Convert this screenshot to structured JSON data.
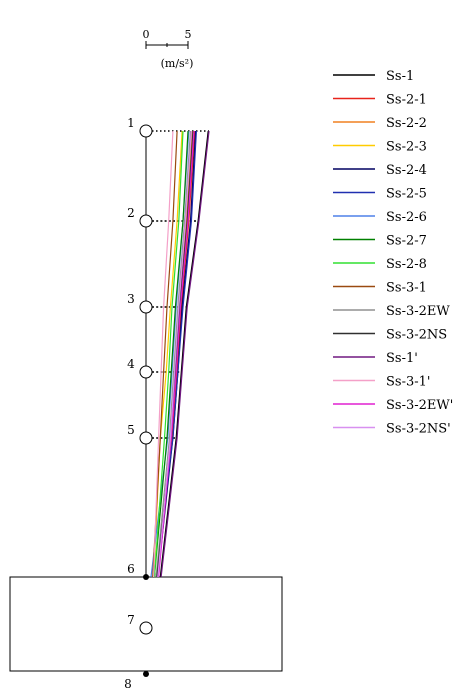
{
  "chart_data": {
    "type": "line",
    "title": "",
    "xlabel": "",
    "ylabel": "",
    "scale_bar": {
      "min_label": "0",
      "max_label": "5",
      "unit": "(m/s²)",
      "length": 5
    },
    "nodes": [
      {
        "id": "1",
        "mass": true
      },
      {
        "id": "2",
        "mass": true
      },
      {
        "id": "3",
        "mass": true
      },
      {
        "id": "4",
        "mass": true
      },
      {
        "id": "5",
        "mass": true
      },
      {
        "id": "6",
        "mass": false
      },
      {
        "id": "7",
        "mass": true
      },
      {
        "id": "8",
        "mass": false
      }
    ],
    "node_levels": [
      "1",
      "2",
      "3",
      "4",
      "5",
      "6"
    ],
    "xlim": [
      0,
      10
    ],
    "series": [
      {
        "name": "Ss-1",
        "color": "#000000",
        "values": [
          7.4,
          6.2,
          4.8,
          4.2,
          3.6,
          1.7
        ]
      },
      {
        "name": "Ss-2-1",
        "color": "#e8231b",
        "values": [
          5.8,
          5.1,
          4.2,
          3.7,
          3.1,
          1.4
        ]
      },
      {
        "name": "Ss-2-2",
        "color": "#f08020",
        "values": [
          5.5,
          4.8,
          3.9,
          3.5,
          3.0,
          1.3
        ]
      },
      {
        "name": "Ss-2-3",
        "color": "#ffcc00",
        "values": [
          4.3,
          3.7,
          2.9,
          2.4,
          1.7,
          0.9
        ]
      },
      {
        "name": "Ss-2-4",
        "color": "#000060",
        "values": [
          5.9,
          5.3,
          4.3,
          3.8,
          3.2,
          1.4
        ]
      },
      {
        "name": "Ss-2-5",
        "color": "#2030b0",
        "values": [
          6.0,
          5.4,
          4.4,
          3.8,
          3.2,
          1.2
        ]
      },
      {
        "name": "Ss-2-6",
        "color": "#4f80e8",
        "values": [
          5.1,
          4.4,
          3.6,
          3.1,
          2.6,
          0.6
        ]
      },
      {
        "name": "Ss-2-7",
        "color": "#008000",
        "values": [
          5.0,
          4.4,
          3.5,
          3.0,
          2.5,
          1.0
        ]
      },
      {
        "name": "Ss-2-8",
        "color": "#30e030",
        "values": [
          4.4,
          3.9,
          3.1,
          2.7,
          2.2,
          1.0
        ]
      },
      {
        "name": "Ss-3-1",
        "color": "#9a4a10",
        "values": [
          3.7,
          3.2,
          2.5,
          2.1,
          1.7,
          0.8
        ]
      },
      {
        "name": "Ss-3-2EW",
        "color": "#909090",
        "values": [
          5.3,
          4.6,
          3.8,
          3.3,
          2.8,
          1.2
        ]
      },
      {
        "name": "Ss-3-2NS",
        "color": "#303030",
        "values": [
          5.6,
          4.9,
          4.0,
          3.5,
          3.0,
          1.3
        ]
      },
      {
        "name": "Ss-1'",
        "color": "#701880",
        "values": [
          7.5,
          6.3,
          4.9,
          4.3,
          3.7,
          1.8
        ]
      },
      {
        "name": "Ss-3-1'",
        "color": "#f4a0c8",
        "values": [
          3.2,
          2.7,
          2.1,
          1.8,
          1.5,
          0.9
        ]
      },
      {
        "name": "Ss-3-2EW'",
        "color": "#e020d0",
        "values": [
          5.7,
          5.0,
          4.1,
          3.6,
          3.0,
          1.5
        ]
      },
      {
        "name": "Ss-3-2NS'",
        "color": "#d890f0",
        "values": [
          5.4,
          4.7,
          3.9,
          3.4,
          2.9,
          1.4
        ]
      }
    ]
  }
}
